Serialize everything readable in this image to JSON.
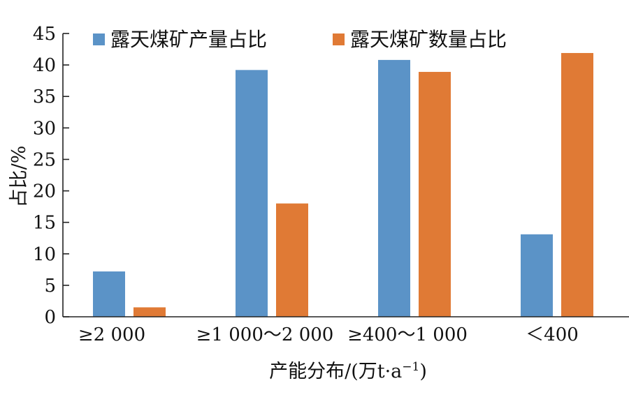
{
  "chart_data": {
    "type": "bar",
    "categories": [
      "≥2 000",
      "≥1 000～2 000",
      "≥400～1 000",
      "＜400"
    ],
    "series": [
      {
        "name": "露天煤矿产量占比",
        "values": [
          7.2,
          39.2,
          40.8,
          13.1
        ],
        "color": "#5b93c7"
      },
      {
        "name": "露天煤矿数量占比",
        "values": [
          1.5,
          18.0,
          38.9,
          41.9
        ],
        "color": "#e07a35"
      }
    ],
    "xlabel_main": "产能分布/(万t·a",
    "xlabel_sup": "−1",
    "xlabel_end": ")",
    "ylabel": "占比/%",
    "ylim": [
      0,
      45
    ],
    "yticks": [
      "0",
      "5",
      "10",
      "15",
      "20",
      "25",
      "30",
      "35",
      "40",
      "45"
    ],
    "grid": false,
    "legend_position": "top"
  }
}
